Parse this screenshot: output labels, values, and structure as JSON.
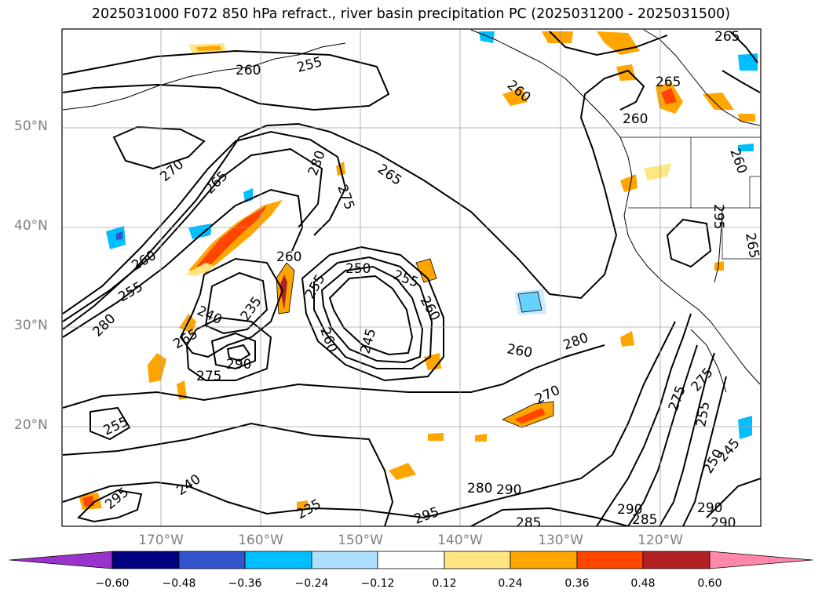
{
  "title": "2025031000 F072 850 hPa refract., river basin precipitation PC (2025031200 - 2025031500)",
  "latitude_labels": [
    "50°N",
    "40°N",
    "30°N",
    "20°N"
  ],
  "longitude_labels": [
    "170°W",
    "160°W",
    "150°W",
    "140°W",
    "130°W",
    "120°W"
  ],
  "contour_labels": [
    "265",
    "255",
    "260",
    "265",
    "260",
    "260",
    "270",
    "265",
    "280",
    "275",
    "265",
    "260",
    "255",
    "260",
    "250",
    "255",
    "260",
    "245",
    "240",
    "235",
    "280",
    "265",
    "290",
    "275",
    "255",
    "260",
    "280",
    "270",
    "275",
    "275",
    "255",
    "250",
    "245",
    "240",
    "235",
    "280",
    "290",
    "295",
    "285",
    "290",
    "285",
    "290",
    "290",
    "295",
    "260",
    "295",
    "265",
    "260",
    "255"
  ],
  "colorbar": {
    "tick_labels": [
      "−0.60",
      "−0.48",
      "−0.36",
      "−0.24",
      "−0.12",
      "0.12",
      "0.24",
      "0.36",
      "0.48",
      "0.60"
    ],
    "colors": [
      "#9933cc",
      "#000080",
      "#3355cc",
      "#00bfff",
      "#aee0ff",
      "#ffffff",
      "#ffe680",
      "#ffa500",
      "#ff4500",
      "#b22222",
      "#ff88aa"
    ],
    "extend": "both"
  }
}
